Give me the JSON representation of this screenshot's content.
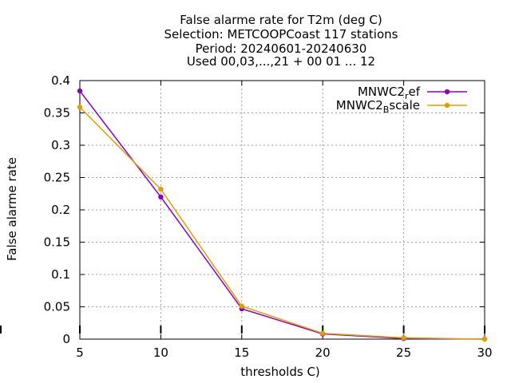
{
  "chart_data": {
    "type": "line",
    "title_lines": [
      "False alarme rate  for T2m (deg C)",
      "Selection: METCOOPCoast    117 stations",
      "Period: 20240601-20240630",
      "Used 00,03,...,21 + 00 01 ... 12"
    ],
    "xlabel": "thresholds C)",
    "ylabel": "False alarme rate",
    "x": [
      5,
      10,
      15,
      20,
      25,
      30
    ],
    "xlim": [
      5,
      30
    ],
    "ylim": [
      0,
      0.4
    ],
    "x_ticks": [
      "5",
      "10",
      "15",
      "20",
      "25",
      "30"
    ],
    "y_ticks": [
      "0",
      "0.05",
      "0.1",
      "0.15",
      "0.2",
      "0.25",
      "0.3",
      "0.35",
      "0.4"
    ],
    "grid": true,
    "legend_position": "top-right",
    "series": [
      {
        "name": "MNWC2_ref",
        "legend_base": "MNWC2",
        "legend_sub": "r",
        "legend_rest": "ef",
        "color": "#8a00c8",
        "values": [
          0.384,
          0.22,
          0.047,
          0.008,
          0.001,
          0.0
        ]
      },
      {
        "name": "MNWC2_Bscale",
        "legend_base": "MNWC2",
        "legend_sub": "B",
        "legend_rest": "scale",
        "color": "#e0a000",
        "values": [
          0.359,
          0.232,
          0.051,
          0.009,
          0.002,
          0.0
        ]
      }
    ]
  }
}
